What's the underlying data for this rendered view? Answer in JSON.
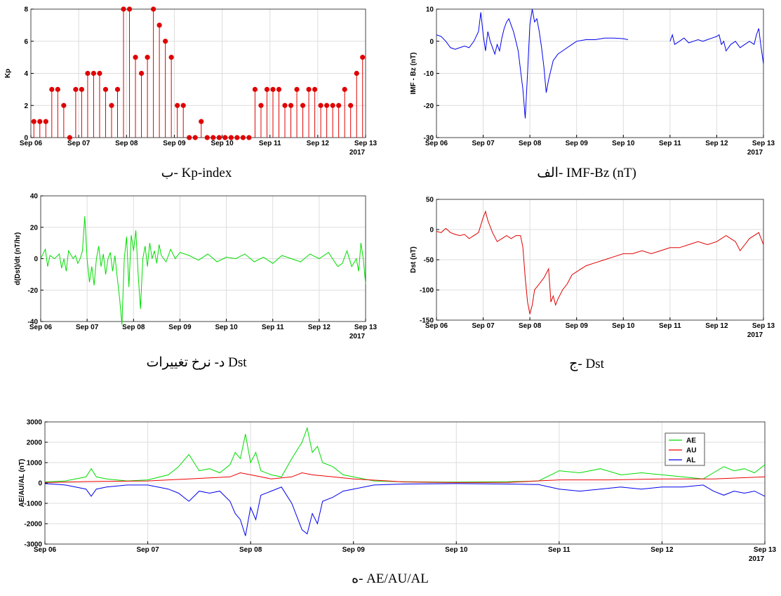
{
  "colors": {
    "kp": "#e00000",
    "bz": "#0000ee",
    "dst": "#e00000",
    "ddst": "#00dd00",
    "ae": "#00dd00",
    "au": "#ee0000",
    "al": "#0000ee",
    "grid": "#dddddd"
  },
  "chart_data": [
    {
      "id": "kp",
      "type": "stem",
      "caption": "ب- Kp-index",
      "ylabel": "Kp",
      "ylim": [
        0,
        8
      ],
      "yticks": [
        0,
        2,
        4,
        6,
        8
      ],
      "xlim": [
        0,
        7
      ],
      "xticks": [
        "Sep 06",
        "Sep 07",
        "Sep 08",
        "Sep 09",
        "Sep 10",
        "Sep 11",
        "Sep 12",
        "Sep 13"
      ],
      "year": "2017",
      "x_unit": "days since Sep 06 00:00, 3-hour bins",
      "values": [
        1,
        1,
        1,
        3,
        3,
        2,
        0,
        3,
        3,
        4,
        4,
        4,
        3,
        2,
        3,
        8,
        8,
        5,
        4,
        5,
        8,
        7,
        6,
        5,
        2,
        2,
        0,
        0,
        1,
        0,
        0,
        0,
        0,
        0,
        0,
        0,
        0,
        3,
        2,
        3,
        3,
        3,
        2,
        2,
        3,
        2,
        3,
        3,
        2,
        2,
        2,
        2,
        3,
        2,
        4,
        5
      ]
    },
    {
      "id": "bz",
      "type": "line",
      "caption": "الف- IMF-Bz (nT)",
      "ylabel": "IMF - Bz (nT)",
      "ylim": [
        -30,
        10
      ],
      "yticks": [
        -30,
        -20,
        -10,
        0,
        10
      ],
      "xlim": [
        0,
        7
      ],
      "xticks": [
        "Sep 06",
        "Sep 07",
        "Sep 08",
        "Sep 09",
        "Sep 10",
        "Sep 11",
        "Sep 12",
        "Sep 13"
      ],
      "year": "2017",
      "segments": [
        {
          "x": [
            0,
            0.1,
            0.2,
            0.3,
            0.4,
            0.5,
            0.6,
            0.7,
            0.8,
            0.9,
            0.95,
            1.0,
            1.05,
            1.1,
            1.15,
            1.2,
            1.25,
            1.3,
            1.35,
            1.4,
            1.45,
            1.5,
            1.55,
            1.6,
            1.65,
            1.7,
            1.75,
            1.8,
            1.85,
            1.9,
            1.95,
            2.0,
            2.05,
            2.1,
            2.15,
            2.2,
            2.25,
            2.3,
            2.35,
            2.4,
            2.45,
            2.5,
            2.55,
            2.6,
            2.7,
            2.8,
            2.9,
            3.0,
            3.2,
            3.4,
            3.6,
            3.8,
            4.0,
            4.1
          ],
          "y": [
            2,
            1.5,
            0,
            -2,
            -2.5,
            -2,
            -1.5,
            -2,
            0,
            3,
            9,
            2,
            -3,
            3,
            0,
            -2,
            -4,
            -1,
            -3,
            1,
            4,
            6,
            7,
            5,
            3,
            0,
            -3,
            -9,
            -15,
            -24,
            -10,
            5,
            10,
            6,
            7,
            3,
            -2,
            -8,
            -16,
            -12,
            -9,
            -6,
            -5,
            -4,
            -3,
            -2,
            -1,
            0,
            0.5,
            0.5,
            1,
            1,
            0.8,
            0.5
          ]
        },
        {
          "x": [
            5.0,
            5.05,
            5.1,
            5.2,
            5.3,
            5.4,
            5.5,
            5.6,
            5.7,
            5.8,
            5.9,
            6.0,
            6.05,
            6.1,
            6.15,
            6.2,
            6.25,
            6.3,
            6.4,
            6.5,
            6.6,
            6.7,
            6.8,
            6.85,
            6.9,
            6.95,
            7.0
          ],
          "y": [
            0,
            2,
            -1,
            0,
            1,
            -0.5,
            0,
            0.5,
            0,
            0.5,
            1,
            1.5,
            2,
            -1,
            0,
            -3,
            -2,
            -1,
            0,
            -2,
            -1,
            0,
            -1,
            2,
            4,
            -2,
            -7
          ]
        }
      ]
    },
    {
      "id": "ddst",
      "type": "line",
      "caption": "د- نرخ تغییرات Dst",
      "ylabel": "d(Dst)/dt  (nT/hr)",
      "ylim": [
        -40,
        40
      ],
      "yticks": [
        -40,
        -20,
        0,
        20,
        40
      ],
      "xlim": [
        0,
        7
      ],
      "xticks": [
        "Sep 06",
        "Sep 07",
        "Sep 08",
        "Sep 09",
        "Sep 10",
        "Sep 11",
        "Sep 12",
        "Sep 13"
      ],
      "year": "2017",
      "x": [
        0,
        0.05,
        0.1,
        0.15,
        0.2,
        0.3,
        0.4,
        0.45,
        0.5,
        0.55,
        0.6,
        0.7,
        0.75,
        0.8,
        0.85,
        0.9,
        0.95,
        1.0,
        1.05,
        1.1,
        1.15,
        1.2,
        1.25,
        1.3,
        1.35,
        1.4,
        1.45,
        1.5,
        1.55,
        1.6,
        1.65,
        1.7,
        1.75,
        1.8,
        1.85,
        1.9,
        1.95,
        2.0,
        2.05,
        2.1,
        2.15,
        2.2,
        2.25,
        2.3,
        2.35,
        2.4,
        2.45,
        2.5,
        2.55,
        2.6,
        2.7,
        2.8,
        2.9,
        3.0,
        3.2,
        3.4,
        3.6,
        3.8,
        4.0,
        4.2,
        4.4,
        4.6,
        4.8,
        5.0,
        5.2,
        5.4,
        5.6,
        5.8,
        6.0,
        6.2,
        6.4,
        6.5,
        6.6,
        6.7,
        6.8,
        6.85,
        6.9,
        6.95,
        7.0
      ],
      "y": [
        0,
        3,
        6,
        -5,
        2,
        0,
        3,
        -6,
        0,
        -8,
        5,
        0,
        2,
        -3,
        0,
        5,
        27,
        0,
        -15,
        -5,
        -17,
        0,
        8,
        -5,
        3,
        -10,
        0,
        4,
        -8,
        2,
        -12,
        -25,
        -42,
        0,
        14,
        -18,
        15,
        5,
        18,
        -10,
        -32,
        0,
        8,
        -5,
        10,
        0,
        5,
        -3,
        9,
        2,
        -2,
        6,
        0,
        4,
        2,
        -1,
        3,
        -2,
        1,
        0,
        3,
        -2,
        1,
        -3,
        2,
        0,
        -2,
        3,
        0,
        4,
        -5,
        -3,
        5,
        -5,
        0,
        -8,
        10,
        0,
        -16
      ]
    },
    {
      "id": "dst",
      "type": "line",
      "caption": "ج- Dst",
      "ylabel": "Dst (nT)",
      "ylim": [
        -150,
        50
      ],
      "yticks": [
        -150,
        -100,
        -50,
        0,
        50
      ],
      "xlim": [
        0,
        7
      ],
      "xticks": [
        "Sep 06",
        "Sep 07",
        "Sep 08",
        "Sep 09",
        "Sep 10",
        "Sep 11",
        "Sep 12",
        "Sep 13"
      ],
      "year": "2017",
      "x": [
        0,
        0.1,
        0.2,
        0.3,
        0.4,
        0.5,
        0.6,
        0.7,
        0.8,
        0.9,
        1.0,
        1.05,
        1.1,
        1.2,
        1.3,
        1.4,
        1.5,
        1.6,
        1.7,
        1.8,
        1.85,
        1.9,
        1.95,
        2.0,
        2.05,
        2.1,
        2.2,
        2.3,
        2.4,
        2.45,
        2.5,
        2.55,
        2.6,
        2.7,
        2.8,
        2.9,
        3.0,
        3.2,
        3.4,
        3.6,
        3.8,
        4.0,
        4.2,
        4.4,
        4.6,
        4.8,
        5.0,
        5.2,
        5.4,
        5.6,
        5.8,
        6.0,
        6.2,
        6.3,
        6.4,
        6.5,
        6.6,
        6.7,
        6.8,
        6.9,
        7.0
      ],
      "y": [
        -3,
        -5,
        2,
        -5,
        -8,
        -10,
        -8,
        -15,
        -10,
        -5,
        20,
        30,
        15,
        -5,
        -20,
        -15,
        -10,
        -15,
        -10,
        -10,
        -30,
        -80,
        -120,
        -140,
        -125,
        -100,
        -90,
        -80,
        -65,
        -120,
        -110,
        -125,
        -115,
        -100,
        -90,
        -75,
        -70,
        -60,
        -55,
        -50,
        -45,
        -40,
        -40,
        -35,
        -40,
        -35,
        -30,
        -30,
        -25,
        -20,
        -25,
        -20,
        -10,
        -15,
        -20,
        -35,
        -25,
        -15,
        -10,
        -5,
        -25
      ]
    },
    {
      "id": "ae",
      "type": "line",
      "caption": "ه- AE/AU/AL",
      "ylabel": "AE/AU/AL (nT)",
      "ylim": [
        -3000,
        3000
      ],
      "yticks": [
        -3000,
        -2000,
        -1000,
        0,
        1000,
        2000,
        3000
      ],
      "xlim": [
        0,
        7
      ],
      "xticks": [
        "Sep 06",
        "Sep 07",
        "Sep 08",
        "Sep 09",
        "Sep 10",
        "Sep 11",
        "Sep 12",
        "Sep 13"
      ],
      "year": "2017",
      "legend": "top-right",
      "series": [
        {
          "name": "AE",
          "x": [
            0,
            0.2,
            0.4,
            0.45,
            0.5,
            0.6,
            0.8,
            1.0,
            1.2,
            1.3,
            1.4,
            1.5,
            1.6,
            1.7,
            1.8,
            1.85,
            1.9,
            1.95,
            2.0,
            2.05,
            2.1,
            2.2,
            2.3,
            2.4,
            2.5,
            2.55,
            2.6,
            2.65,
            2.7,
            2.8,
            2.9,
            3.0,
            3.2,
            3.5,
            4.0,
            4.5,
            4.8,
            5.0,
            5.2,
            5.4,
            5.6,
            5.8,
            6.0,
            6.2,
            6.4,
            6.5,
            6.6,
            6.7,
            6.8,
            6.9,
            7.0
          ],
          "y": [
            50,
            100,
            300,
            700,
            300,
            200,
            100,
            150,
            400,
            800,
            1400,
            600,
            700,
            500,
            900,
            1500,
            1200,
            2400,
            1000,
            1500,
            600,
            400,
            300,
            1200,
            2000,
            2700,
            1500,
            1800,
            1000,
            800,
            400,
            300,
            100,
            60,
            40,
            60,
            100,
            600,
            500,
            700,
            400,
            500,
            400,
            300,
            200,
            500,
            800,
            600,
            700,
            500,
            900
          ]
        },
        {
          "name": "AU",
          "x": [
            0,
            0.5,
            1.0,
            1.4,
            1.8,
            1.9,
            2.0,
            2.1,
            2.2,
            2.4,
            2.5,
            2.6,
            2.8,
            3.0,
            3.5,
            4.0,
            4.5,
            5.0,
            5.5,
            6.0,
            6.5,
            7.0
          ],
          "y": [
            20,
            80,
            100,
            200,
            300,
            500,
            400,
            300,
            200,
            300,
            500,
            400,
            300,
            200,
            50,
            20,
            30,
            150,
            150,
            200,
            200,
            300
          ]
        },
        {
          "name": "AL",
          "x": [
            0,
            0.2,
            0.4,
            0.45,
            0.5,
            0.6,
            0.8,
            1.0,
            1.2,
            1.3,
            1.4,
            1.5,
            1.6,
            1.7,
            1.8,
            1.85,
            1.9,
            1.95,
            2.0,
            2.05,
            2.1,
            2.2,
            2.3,
            2.4,
            2.5,
            2.55,
            2.6,
            2.65,
            2.7,
            2.8,
            2.9,
            3.0,
            3.2,
            3.5,
            4.0,
            4.5,
            4.8,
            5.0,
            5.2,
            5.4,
            5.6,
            5.8,
            6.0,
            6.2,
            6.4,
            6.5,
            6.6,
            6.7,
            6.8,
            6.9,
            7.0
          ],
          "y": [
            -30,
            -100,
            -300,
            -650,
            -300,
            -200,
            -100,
            -100,
            -300,
            -500,
            -900,
            -400,
            -500,
            -400,
            -900,
            -1500,
            -1800,
            -2600,
            -1200,
            -1800,
            -600,
            -400,
            -200,
            -1000,
            -2300,
            -2500,
            -1500,
            -2000,
            -900,
            -700,
            -400,
            -300,
            -100,
            -50,
            -30,
            -50,
            -80,
            -300,
            -400,
            -300,
            -200,
            -300,
            -200,
            -200,
            -100,
            -400,
            -600,
            -400,
            -500,
            -400,
            -650
          ]
        }
      ]
    }
  ]
}
